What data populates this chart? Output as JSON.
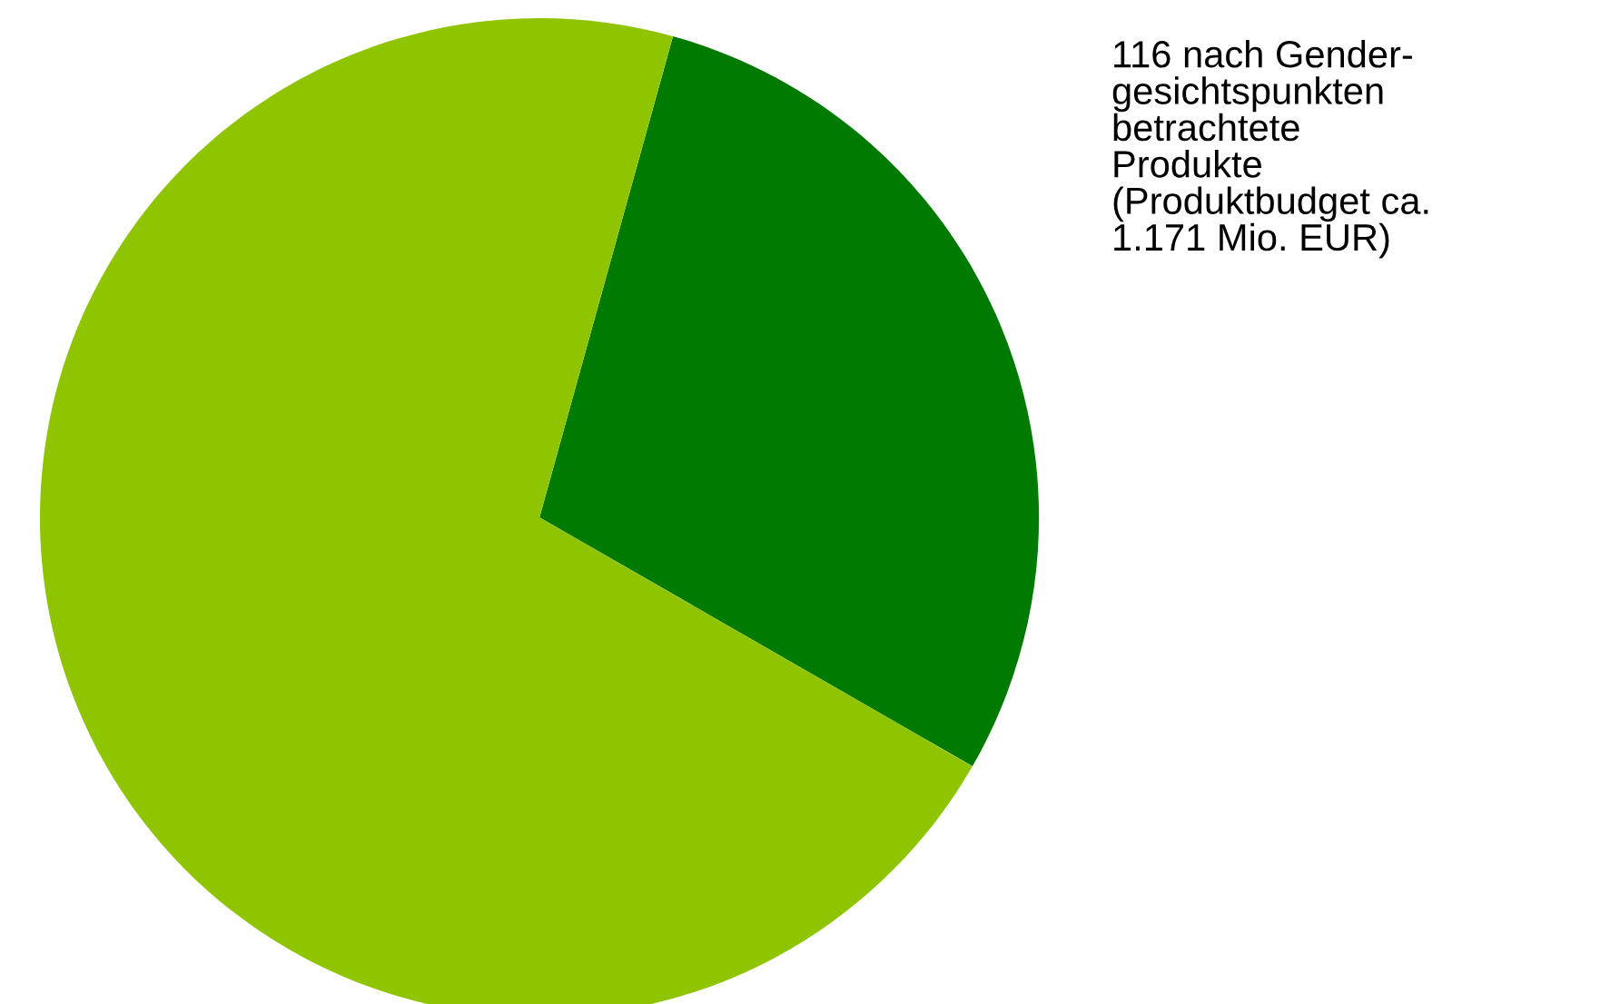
{
  "chart_data": {
    "type": "pie",
    "categories": [
      null,
      null
    ],
    "values": [
      29,
      71
    ],
    "colors": [
      "#007a00",
      "#8fc400"
    ],
    "annotations": [
      "116 nach Gender-\ngesichtspunkten\nbetrachtete\nProdukte\n(Produktbudget ca.\n1.171 Mio. EUR)"
    ]
  }
}
